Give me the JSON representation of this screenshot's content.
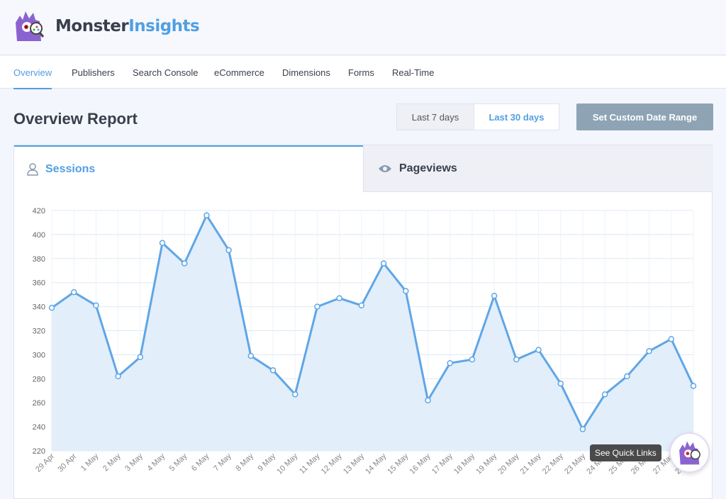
{
  "brand": {
    "name_part1": "Monster",
    "name_part2": "Insights",
    "accent": "#509fe2"
  },
  "nav": {
    "items": [
      "Overview",
      "Publishers",
      "Search Console",
      "eCommerce",
      "Dimensions",
      "Forms",
      "Real-Time"
    ],
    "active": "Overview"
  },
  "page": {
    "title": "Overview Report"
  },
  "date_range": {
    "last7": "Last 7 days",
    "last30": "Last 30 days",
    "selected": "Last 30 days",
    "custom": "Set Custom Date Range"
  },
  "tabs": [
    {
      "label": "Sessions",
      "icon": "user-icon",
      "active": true
    },
    {
      "label": "Pageviews",
      "icon": "eye-icon",
      "active": false
    }
  ],
  "chart_data": {
    "type": "area",
    "x": [
      "29 Apr",
      "30 Apr",
      "1 May",
      "2 May",
      "3 May",
      "4 May",
      "5 May",
      "6 May",
      "7 May",
      "8 May",
      "9 May",
      "10 May",
      "11 May",
      "12 May",
      "13 May",
      "14 May",
      "15 May",
      "16 May",
      "17 May",
      "18 May",
      "19 May",
      "20 May",
      "21 May",
      "22 May",
      "23 May",
      "24 May",
      "25 May",
      "26 May",
      "27 May",
      "28 May"
    ],
    "series": [
      {
        "values": [
          339,
          352,
          341,
          282,
          298,
          393,
          376,
          416,
          387,
          299,
          287,
          267,
          340,
          347,
          341,
          376,
          353,
          262,
          293,
          296,
          349,
          296,
          304,
          276,
          238,
          267,
          282,
          303,
          313,
          274
        ]
      }
    ],
    "yticks": [
      220,
      240,
      260,
      280,
      300,
      320,
      340,
      360,
      380,
      400,
      420
    ],
    "ylim": [
      220,
      420
    ],
    "grid": true,
    "color": "#5fa6e6"
  },
  "quick_links": {
    "tooltip": "See Quick Links"
  }
}
